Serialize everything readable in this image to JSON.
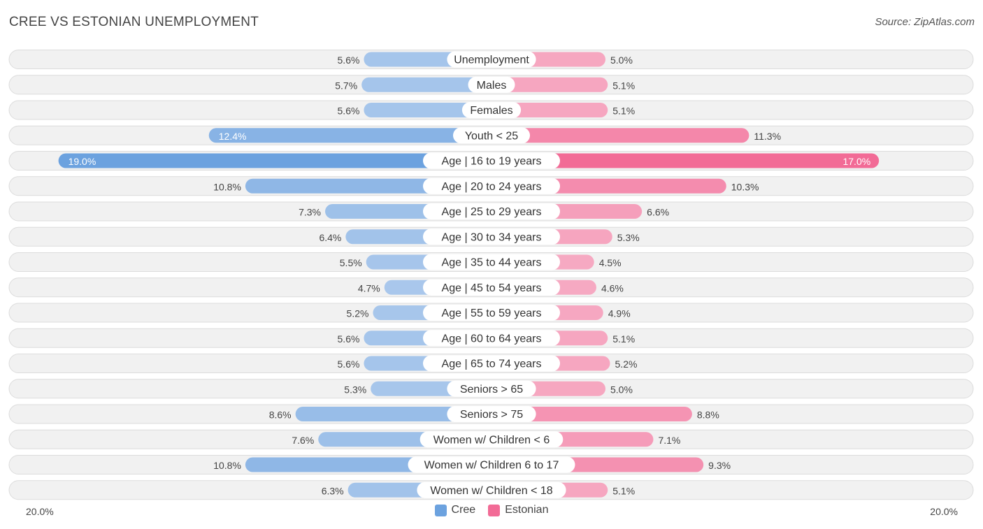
{
  "header": {
    "title": "CREE VS ESTONIAN UNEMPLOYMENT",
    "source": "Source: ZipAtlas.com"
  },
  "colors": {
    "cree_strong": "#6ca2df",
    "cree_light": "#aac8ec",
    "estonian_strong": "#f26b96",
    "estonian_light": "#f6a9c2",
    "row_bg": "#f1f1f1",
    "row_border": "#dcdcdc"
  },
  "chart_data": {
    "type": "bar",
    "orientation": "horizontal-diverging",
    "title": "CREE VS ESTONIAN UNEMPLOYMENT",
    "axis_max": 20.0,
    "axis_left_label": "20.0%",
    "axis_right_label": "20.0%",
    "legend_position": "bottom-center",
    "categories": [
      "Unemployment",
      "Males",
      "Females",
      "Youth < 25",
      "Age | 16 to 19 years",
      "Age | 20 to 24 years",
      "Age | 25 to 29 years",
      "Age | 30 to 34 years",
      "Age | 35 to 44 years",
      "Age | 45 to 54 years",
      "Age | 55 to 59 years",
      "Age | 60 to 64 years",
      "Age | 65 to 74 years",
      "Seniors > 65",
      "Seniors > 75",
      "Women w/ Children < 6",
      "Women w/ Children 6 to 17",
      "Women w/ Children < 18"
    ],
    "series": [
      {
        "name": "Cree",
        "values": [
          5.6,
          5.7,
          5.6,
          12.4,
          19.0,
          10.8,
          7.3,
          6.4,
          5.5,
          4.7,
          5.2,
          5.6,
          5.6,
          5.3,
          8.6,
          7.6,
          10.8,
          6.3
        ],
        "labels": [
          "5.6%",
          "5.7%",
          "5.6%",
          "12.4%",
          "19.0%",
          "10.8%",
          "7.3%",
          "6.4%",
          "5.5%",
          "4.7%",
          "5.2%",
          "5.6%",
          "5.6%",
          "5.3%",
          "8.6%",
          "7.6%",
          "10.8%",
          "6.3%"
        ]
      },
      {
        "name": "Estonian",
        "values": [
          5.0,
          5.1,
          5.1,
          11.3,
          17.0,
          10.3,
          6.6,
          5.3,
          4.5,
          4.6,
          4.9,
          5.1,
          5.2,
          5.0,
          8.8,
          7.1,
          9.3,
          5.1
        ],
        "labels": [
          "5.0%",
          "5.1%",
          "5.1%",
          "11.3%",
          "17.0%",
          "10.3%",
          "6.6%",
          "5.3%",
          "4.5%",
          "4.6%",
          "4.9%",
          "5.1%",
          "5.2%",
          "5.0%",
          "8.8%",
          "7.1%",
          "9.3%",
          "5.1%"
        ]
      }
    ]
  },
  "legend": {
    "items": [
      {
        "label": "Cree",
        "color": "#6ca2df"
      },
      {
        "label": "Estonian",
        "color": "#f26b96"
      }
    ]
  }
}
